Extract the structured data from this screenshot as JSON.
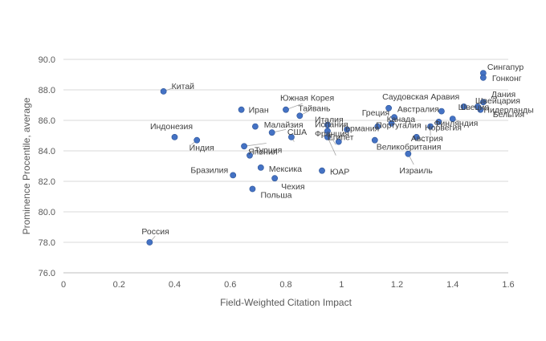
{
  "chart_data": {
    "type": "scatter",
    "xlabel": "Field-Weighted Citation Impact",
    "ylabel": "Prominence Procentile, average",
    "xlim": [
      0,
      1.6
    ],
    "ylim": [
      76.0,
      90.0
    ],
    "xticks": [
      "0",
      "0.2",
      "0.4",
      "0.6",
      "0.8",
      "1",
      "1.2",
      "1.4",
      "1.6"
    ],
    "yticks": [
      "76.0",
      "78.0",
      "80.0",
      "82.0",
      "84.0",
      "86.0",
      "88.0",
      "90.0"
    ],
    "grid": "horizontal",
    "series": [
      {
        "color": "#4472c4",
        "points": [
          {
            "label": "Сингапур",
            "x": 1.51,
            "y": 89.1
          },
          {
            "label": "Гонконг",
            "x": 1.51,
            "y": 88.8
          },
          {
            "label": "Дания",
            "x": 1.51,
            "y": 87.2
          },
          {
            "label": "Швейцария",
            "x": 1.49,
            "y": 86.9
          },
          {
            "label": "Нидерланды",
            "x": 1.5,
            "y": 86.7
          },
          {
            "label": "Бельгия",
            "x": 1.4,
            "y": 86.1
          },
          {
            "label": "Швеция",
            "x": 1.44,
            "y": 86.9
          },
          {
            "label": "Финляндия",
            "x": 1.35,
            "y": 85.9
          },
          {
            "label": "Норвегия",
            "x": 1.32,
            "y": 85.6
          },
          {
            "label": "Австрия",
            "x": 1.27,
            "y": 84.9
          },
          {
            "label": "Великобритания",
            "x": 1.12,
            "y": 84.7
          },
          {
            "label": "Израиль",
            "x": 1.24,
            "y": 83.8
          },
          {
            "label": "Саудовская Аравия",
            "x": 1.17,
            "y": 86.8
          },
          {
            "label": "Австралия",
            "x": 1.36,
            "y": 86.6
          },
          {
            "label": "Греция",
            "x": 1.19,
            "y": 86.2
          },
          {
            "label": "Канада",
            "x": 1.18,
            "y": 85.8
          },
          {
            "label": "Португалия",
            "x": 1.13,
            "y": 85.6
          },
          {
            "label": "Германия",
            "x": 1.02,
            "y": 85.4
          },
          {
            "label": "Италия",
            "x": 0.95,
            "y": 85.7
          },
          {
            "label": "Испания",
            "x": 0.95,
            "y": 85.3
          },
          {
            "label": "Франция",
            "x": 0.95,
            "y": 84.9
          },
          {
            "label": "Египет",
            "x": 0.99,
            "y": 84.6
          },
          {
            "label": "Южная Корея",
            "x": 0.8,
            "y": 86.7
          },
          {
            "label": "Тайвань",
            "x": 0.85,
            "y": 86.3
          },
          {
            "label": "Малайзия",
            "x": 0.75,
            "y": 85.2
          },
          {
            "label": "США",
            "x": 0.82,
            "y": 84.9
          },
          {
            "label": "Иран",
            "x": 0.64,
            "y": 86.7
          },
          {
            "label": "Индонезия",
            "x": 0.4,
            "y": 84.9
          },
          {
            "label": "Индия",
            "x": 0.48,
            "y": 84.7
          },
          {
            "label": "Китай",
            "x": 0.36,
            "y": 87.9
          },
          {
            "label": "Япония",
            "x": 0.65,
            "y": 84.3
          },
          {
            "label": "Турция",
            "x": 0.67,
            "y": 83.7
          },
          {
            "label": "Бразилия",
            "x": 0.61,
            "y": 82.4
          },
          {
            "label": "Мексика",
            "x": 0.71,
            "y": 82.9
          },
          {
            "label": "Чехия",
            "x": 0.76,
            "y": 82.2
          },
          {
            "label": "Польша",
            "x": 0.68,
            "y": 81.5
          },
          {
            "label": "ЮАР",
            "x": 0.93,
            "y": 82.7
          },
          {
            "label": "Россия",
            "x": 0.31,
            "y": 78.0
          },
          {
            "label": "",
            "x": 0.69,
            "y": 85.6
          }
        ]
      }
    ]
  }
}
